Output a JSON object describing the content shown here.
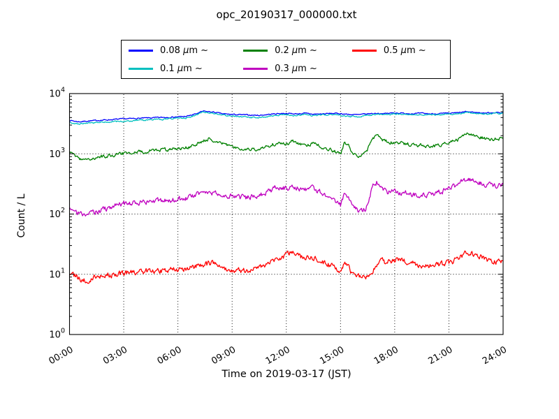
{
  "chart_data": {
    "type": "line",
    "title": "opc_20190317_000000.txt",
    "xlabel": "Time on 2019-03-17 (JST)",
    "ylabel": "Count / L",
    "x_axis": {
      "unit": "hours JST",
      "min": 0,
      "max": 24,
      "major_tick_step_hours": 3,
      "minor_tick_step_hours": 0.5,
      "tick_labels": [
        "00:00",
        "03:00",
        "06:00",
        "09:00",
        "12:00",
        "15:00",
        "18:00",
        "21:00",
        "24:00"
      ]
    },
    "y_axis": {
      "scale": "log10",
      "min": 1,
      "max": 10000,
      "tick_exponents": [
        0,
        1,
        2,
        3,
        4
      ],
      "tick_labels": [
        "10^0",
        "10^1",
        "10^2",
        "10^3",
        "10^4"
      ]
    },
    "grid": {
      "shown": true,
      "style": "dotted",
      "color": "#000000"
    },
    "legend": {
      "position": "above axes, centered",
      "columns": 3,
      "fill_order": "column-major"
    },
    "series": [
      {
        "name": "0.08um",
        "label": "0.08 μm ~",
        "color": "#0000ff",
        "noise_log10": 0.016,
        "points": [
          [
            0,
            3600
          ],
          [
            0.5,
            3400
          ],
          [
            1,
            3500
          ],
          [
            2,
            3650
          ],
          [
            3,
            3800
          ],
          [
            4,
            3900
          ],
          [
            5,
            4000
          ],
          [
            6,
            4100
          ],
          [
            6.5,
            4200
          ],
          [
            7,
            4600
          ],
          [
            7.4,
            5100
          ],
          [
            8,
            4900
          ],
          [
            8.5,
            4600
          ],
          [
            9,
            4500
          ],
          [
            10,
            4400
          ],
          [
            10.5,
            4350
          ],
          [
            11,
            4500
          ],
          [
            11.5,
            4650
          ],
          [
            12,
            4700
          ],
          [
            12.5,
            4600
          ],
          [
            13,
            4700
          ],
          [
            13.5,
            4550
          ],
          [
            14,
            4600
          ],
          [
            14.6,
            4700
          ],
          [
            15,
            4650
          ],
          [
            15.5,
            4500
          ],
          [
            16,
            4450
          ],
          [
            16.5,
            4600
          ],
          [
            17,
            4700
          ],
          [
            17.5,
            4650
          ],
          [
            18,
            4800
          ],
          [
            18.5,
            4700
          ],
          [
            19,
            4650
          ],
          [
            19.5,
            4700
          ],
          [
            20,
            4600
          ],
          [
            20.5,
            4650
          ],
          [
            21,
            4700
          ],
          [
            21.5,
            4800
          ],
          [
            22,
            5000
          ],
          [
            22.5,
            4850
          ],
          [
            23,
            4750
          ],
          [
            23.5,
            4850
          ],
          [
            24,
            4800
          ]
        ]
      },
      {
        "name": "0.1um",
        "label": "0.1 μm ~",
        "color": "#00bfbf",
        "noise_log10": 0.02,
        "points": [
          [
            0,
            3300
          ],
          [
            0.5,
            3120
          ],
          [
            1,
            3230
          ],
          [
            2,
            3380
          ],
          [
            3,
            3480
          ],
          [
            4,
            3620
          ],
          [
            5,
            3730
          ],
          [
            6,
            3880
          ],
          [
            6.5,
            3980
          ],
          [
            7,
            4380
          ],
          [
            7.4,
            4950
          ],
          [
            8,
            4700
          ],
          [
            8.5,
            4380
          ],
          [
            9,
            4230
          ],
          [
            10,
            4020
          ],
          [
            10.5,
            3980
          ],
          [
            11,
            4180
          ],
          [
            11.5,
            4380
          ],
          [
            12,
            4480
          ],
          [
            12.5,
            4330
          ],
          [
            13,
            4480
          ],
          [
            13.5,
            4280
          ],
          [
            14,
            4380
          ],
          [
            14.6,
            4480
          ],
          [
            15,
            4380
          ],
          [
            15.5,
            4150
          ],
          [
            16,
            4100
          ],
          [
            16.5,
            4380
          ],
          [
            17,
            4520
          ],
          [
            17.5,
            4430
          ],
          [
            18,
            4630
          ],
          [
            18.5,
            4530
          ],
          [
            19,
            4480
          ],
          [
            19.5,
            4530
          ],
          [
            20,
            4430
          ],
          [
            20.5,
            4480
          ],
          [
            21,
            4530
          ],
          [
            21.5,
            4680
          ],
          [
            22,
            4880
          ],
          [
            22.5,
            4730
          ],
          [
            23,
            4580
          ],
          [
            23.5,
            4730
          ],
          [
            24,
            4680
          ]
        ]
      },
      {
        "name": "0.2um",
        "label": "0.2 μm ~",
        "color": "#008000",
        "noise_log10": 0.05,
        "points": [
          [
            0,
            1050
          ],
          [
            0.75,
            780
          ],
          [
            1.5,
            880
          ],
          [
            2,
            920
          ],
          [
            3,
            1000
          ],
          [
            4,
            1080
          ],
          [
            5,
            1160
          ],
          [
            6,
            1220
          ],
          [
            6.5,
            1270
          ],
          [
            7,
            1420
          ],
          [
            7.7,
            1800
          ],
          [
            8.2,
            1600
          ],
          [
            9,
            1300
          ],
          [
            9.7,
            1190
          ],
          [
            10.3,
            1150
          ],
          [
            11,
            1350
          ],
          [
            11.5,
            1520
          ],
          [
            12,
            1450
          ],
          [
            12.3,
            1600
          ],
          [
            12.7,
            1500
          ],
          [
            13,
            1400
          ],
          [
            13.5,
            1460
          ],
          [
            14,
            1300
          ],
          [
            14.5,
            1150
          ],
          [
            15,
            1000
          ],
          [
            15.2,
            1450
          ],
          [
            15.45,
            1420
          ],
          [
            15.6,
            1050
          ],
          [
            16,
            950
          ],
          [
            16.4,
            1000
          ],
          [
            16.8,
            1850
          ],
          [
            17,
            2000
          ],
          [
            17.3,
            1700
          ],
          [
            17.6,
            1600
          ],
          [
            18,
            1550
          ],
          [
            18.3,
            1500
          ],
          [
            19,
            1420
          ],
          [
            19.5,
            1350
          ],
          [
            20,
            1320
          ],
          [
            20.5,
            1400
          ],
          [
            21,
            1500
          ],
          [
            21.5,
            1700
          ],
          [
            22,
            2200
          ],
          [
            22.3,
            2050
          ],
          [
            22.7,
            1900
          ],
          [
            23,
            1820
          ],
          [
            23.5,
            1720
          ],
          [
            24,
            1900
          ]
        ]
      },
      {
        "name": "0.3um",
        "label": "0.3 μm ~",
        "color": "#bf00bf",
        "noise_log10": 0.075,
        "points": [
          [
            0,
            130
          ],
          [
            0.75,
            95
          ],
          [
            1.5,
            110
          ],
          [
            2,
            120
          ],
          [
            2.5,
            140
          ],
          [
            3,
            148
          ],
          [
            4,
            158
          ],
          [
            5,
            168
          ],
          [
            6,
            172
          ],
          [
            6.5,
            182
          ],
          [
            7,
            205
          ],
          [
            7.5,
            235
          ],
          [
            8,
            225
          ],
          [
            8.5,
            215
          ],
          [
            9,
            196
          ],
          [
            9.7,
            186
          ],
          [
            10.3,
            196
          ],
          [
            11,
            232
          ],
          [
            11.5,
            282
          ],
          [
            12,
            262
          ],
          [
            12.3,
            300
          ],
          [
            12.7,
            265
          ],
          [
            13,
            250
          ],
          [
            13.5,
            262
          ],
          [
            14,
            225
          ],
          [
            14.5,
            185
          ],
          [
            15,
            140
          ],
          [
            15.2,
            205
          ],
          [
            15.45,
            200
          ],
          [
            15.6,
            140
          ],
          [
            16,
            112
          ],
          [
            16.4,
            120
          ],
          [
            16.8,
            300
          ],
          [
            17,
            340
          ],
          [
            17.3,
            252
          ],
          [
            17.6,
            232
          ],
          [
            18,
            245
          ],
          [
            18.3,
            230
          ],
          [
            19,
            212
          ],
          [
            19.5,
            202
          ],
          [
            20,
            212
          ],
          [
            20.5,
            232
          ],
          [
            21,
            258
          ],
          [
            21.5,
            302
          ],
          [
            22,
            390
          ],
          [
            22.3,
            365
          ],
          [
            22.7,
            330
          ],
          [
            23,
            312
          ],
          [
            23.5,
            292
          ],
          [
            24,
            315
          ]
        ]
      },
      {
        "name": "0.5um",
        "label": "0.5 μm ~",
        "color": "#ff0000",
        "noise_log10": 0.08,
        "points": [
          [
            0,
            10.5
          ],
          [
            0.75,
            7.8
          ],
          [
            1.5,
            9
          ],
          [
            2,
            9.5
          ],
          [
            3,
            10.5
          ],
          [
            4,
            11
          ],
          [
            5,
            11.5
          ],
          [
            6,
            12
          ],
          [
            6.5,
            12.5
          ],
          [
            7,
            13.5
          ],
          [
            7.9,
            15.5
          ],
          [
            8.4,
            13.5
          ],
          [
            9,
            12
          ],
          [
            9.7,
            11.2
          ],
          [
            10.2,
            12.5
          ],
          [
            10.7,
            13.5
          ],
          [
            11,
            15
          ],
          [
            11.5,
            18
          ],
          [
            12,
            21
          ],
          [
            12.3,
            23
          ],
          [
            12.7,
            19.5
          ],
          [
            13,
            18
          ],
          [
            13.4,
            19.5
          ],
          [
            14,
            16
          ],
          [
            14.5,
            13.5
          ],
          [
            15,
            11.5
          ],
          [
            15.2,
            14.5
          ],
          [
            15.45,
            14
          ],
          [
            15.6,
            10.8
          ],
          [
            16,
            9.3
          ],
          [
            16.4,
            9
          ],
          [
            16.8,
            12
          ],
          [
            17,
            14.5
          ],
          [
            17.3,
            16.5
          ],
          [
            17.6,
            15.5
          ],
          [
            18,
            17
          ],
          [
            18.3,
            18.5
          ],
          [
            18.6,
            16
          ],
          [
            19,
            15
          ],
          [
            19.5,
            13.5
          ],
          [
            20,
            13.5
          ],
          [
            20.5,
            14.5
          ],
          [
            21,
            15.5
          ],
          [
            21.5,
            17.5
          ],
          [
            22,
            23.5
          ],
          [
            22.3,
            21.5
          ],
          [
            22.7,
            19.5
          ],
          [
            23,
            18
          ],
          [
            23.5,
            16.2
          ],
          [
            24,
            16.5
          ]
        ]
      }
    ]
  }
}
